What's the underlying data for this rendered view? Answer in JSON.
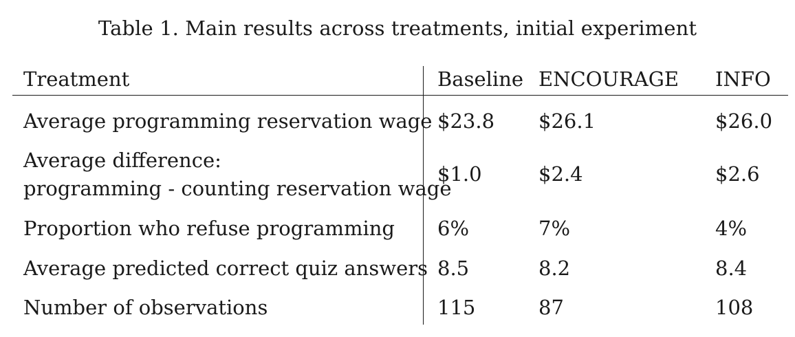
{
  "caption": "Table 1. Main results across treatments, initial experiment",
  "table": {
    "header": {
      "label": "Treatment",
      "columns": [
        "Baseline",
        "ENCOURAGE",
        "INFO"
      ]
    },
    "rows": [
      {
        "label_lines": [
          "Average programming reservation wage"
        ],
        "values": [
          "$23.8",
          "$26.1",
          "$26.0"
        ]
      },
      {
        "label_lines": [
          "Average difference:",
          "programming - counting reservation wage"
        ],
        "values": [
          "$1.0",
          "$2.4",
          "$2.6"
        ]
      },
      {
        "label_lines": [
          "Proportion who refuse programming"
        ],
        "values": [
          "6%",
          "7%",
          "4%"
        ]
      },
      {
        "label_lines": [
          "Average predicted correct quiz answers"
        ],
        "values": [
          "8.5",
          "8.2",
          "8.4"
        ]
      },
      {
        "label_lines": [
          "Number of observations"
        ],
        "values": [
          "115",
          "87",
          "108"
        ]
      }
    ]
  }
}
